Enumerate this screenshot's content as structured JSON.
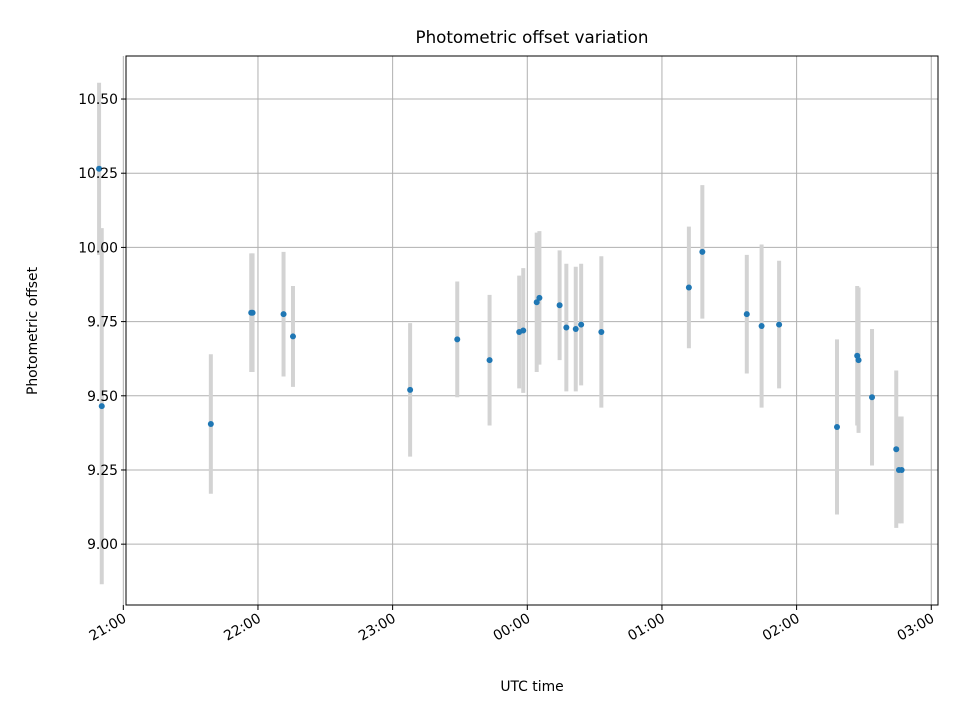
{
  "chart_data": {
    "type": "scatter",
    "title": "Photometric offset variation",
    "xlabel": "UTC time",
    "ylabel": "Photometric offset",
    "x_unit": "hours (UTC, relative to 00:00, negative = previous evening)",
    "xlim": [
      -2.98,
      3.05
    ],
    "ylim": [
      8.795,
      10.645
    ],
    "grid": true,
    "x_ticks": [
      {
        "value": -3,
        "label": "21:00"
      },
      {
        "value": -2,
        "label": "22:00"
      },
      {
        "value": -1,
        "label": "23:00"
      },
      {
        "value": 0,
        "label": "00:00"
      },
      {
        "value": 1,
        "label": "01:00"
      },
      {
        "value": 2,
        "label": "02:00"
      },
      {
        "value": 3,
        "label": "03:00"
      }
    ],
    "y_ticks": [
      {
        "value": 9.0,
        "label": "9.00"
      },
      {
        "value": 9.25,
        "label": "9.25"
      },
      {
        "value": 9.5,
        "label": "9.50"
      },
      {
        "value": 9.75,
        "label": "9.75"
      },
      {
        "value": 10.0,
        "label": "10.00"
      },
      {
        "value": 10.25,
        "label": "10.25"
      },
      {
        "value": 10.5,
        "label": "10.50"
      }
    ],
    "colors": {
      "marker": "#1f77b4",
      "errorbar": "#d3d3d3",
      "grid": "#b0b0b0"
    },
    "series": [
      {
        "x": [
          -3.18,
          -3.16,
          -2.35,
          -2.05,
          -2.04,
          -1.81,
          -1.74,
          -0.87,
          -0.52,
          -0.28,
          -0.06,
          -0.03,
          0.07,
          0.09,
          0.24,
          0.29,
          0.36,
          0.4,
          0.55,
          1.2,
          1.3,
          1.63,
          1.74,
          1.87,
          2.3,
          2.45,
          2.46,
          2.56,
          2.74,
          2.76,
          2.78
        ],
        "y": [
          10.265,
          9.465,
          9.405,
          9.78,
          9.78,
          9.775,
          9.7,
          9.52,
          9.69,
          9.62,
          9.715,
          9.72,
          9.815,
          9.83,
          9.805,
          9.73,
          9.725,
          9.74,
          9.715,
          9.865,
          9.985,
          9.775,
          9.735,
          9.74,
          9.395,
          9.635,
          9.62,
          9.495,
          9.32,
          9.25,
          9.25
        ],
        "yerr": [
          0.29,
          0.6,
          0.235,
          0.2,
          0.2,
          0.21,
          0.17,
          0.225,
          0.195,
          0.22,
          0.19,
          0.21,
          0.235,
          0.225,
          0.185,
          0.215,
          0.21,
          0.205,
          0.255,
          0.205,
          0.225,
          0.2,
          0.275,
          0.215,
          0.295,
          0.235,
          0.245,
          0.23,
          0.265,
          0.18,
          0.18
        ]
      }
    ]
  }
}
